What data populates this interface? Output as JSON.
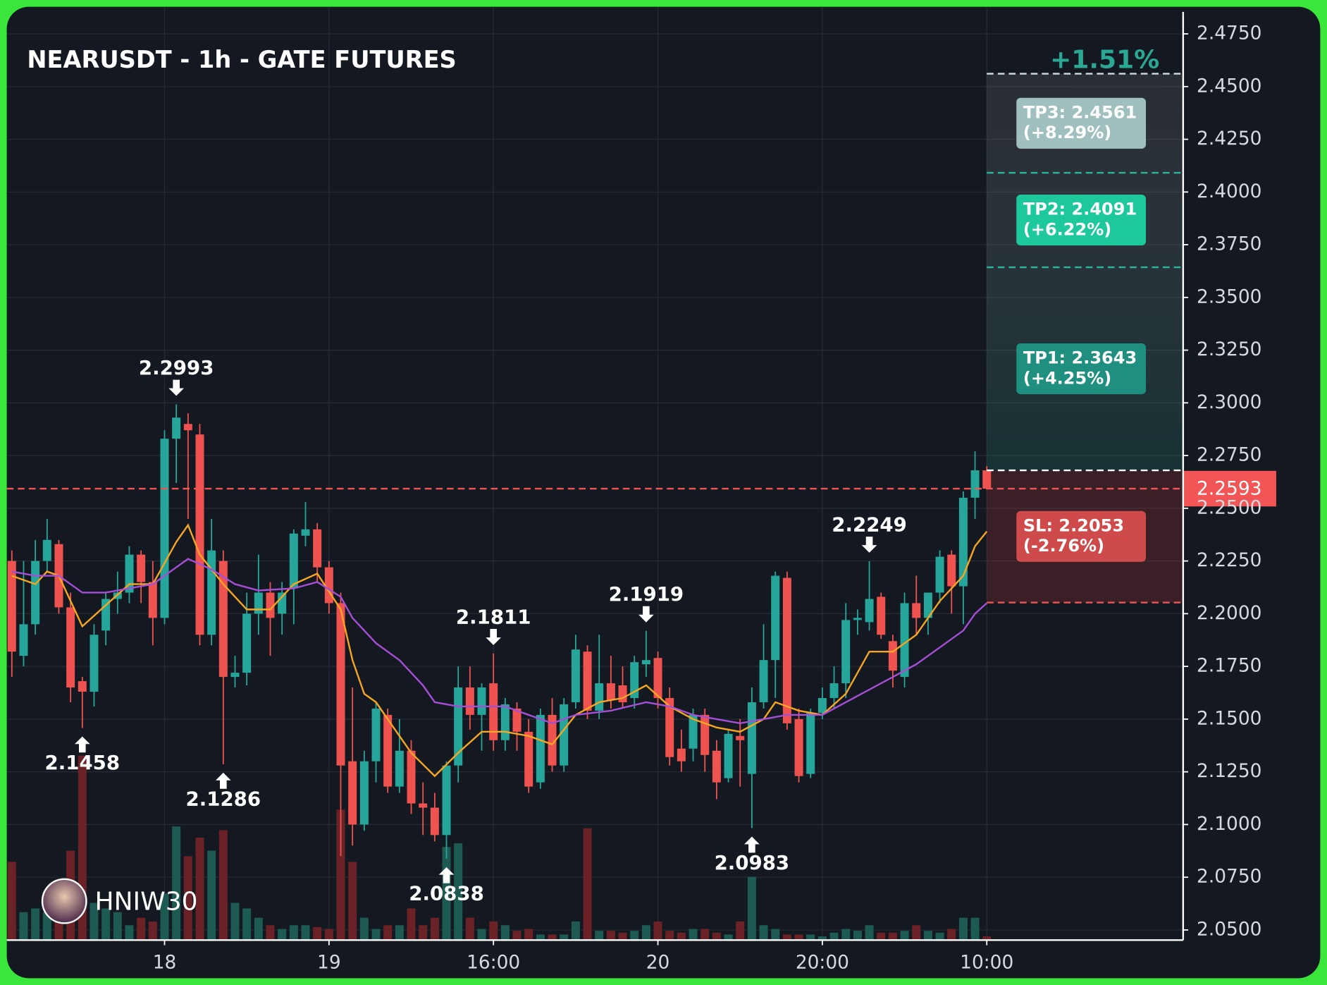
{
  "chart_data": {
    "type": "candlestick",
    "title": "NEARUSDT - 1h - GATE FUTURES",
    "change_label": "+1.51%",
    "watermark": "HNIW30",
    "categories": [
      null,
      null,
      null,
      null,
      null,
      null,
      null,
      null,
      null,
      null,
      null,
      null,
      null,
      "18",
      null,
      null,
      null,
      null,
      null,
      null,
      null,
      null,
      null,
      null,
      null,
      null,
      null,
      "19",
      null,
      null,
      null,
      null,
      null,
      null,
      null,
      null,
      null,
      null,
      null,
      null,
      null,
      "16:00",
      null,
      null,
      null,
      null,
      null,
      null,
      null,
      null,
      null,
      null,
      null,
      null,
      null,
      "20",
      null,
      null,
      null,
      null,
      null,
      null,
      null,
      null,
      null,
      null,
      null,
      null,
      null,
      "20:00",
      null,
      null,
      null,
      null,
      null,
      null,
      null,
      null,
      null,
      null,
      null,
      null,
      null,
      "10:00"
    ],
    "open": [
      2.225,
      2.18,
      2.195,
      2.225,
      2.233,
      2.203,
      2.168,
      2.163,
      2.192,
      2.207,
      2.21,
      2.228,
      2.215,
      2.198,
      2.283,
      2.29,
      2.285,
      2.19,
      2.225,
      2.17,
      2.172,
      2.2,
      2.21,
      2.2,
      2.212,
      2.237,
      2.24,
      2.222,
      2.205,
      2.13,
      2.1,
      2.13,
      2.152,
      2.118,
      2.135,
      2.11,
      2.108,
      2.095,
      2.128,
      2.165,
      2.152,
      2.167,
      2.14,
      2.155,
      2.144,
      2.12,
      2.152,
      2.128,
      2.158,
      2.182,
      2.154,
      2.167,
      2.166,
      2.16,
      2.176,
      2.179,
      2.16,
      2.136,
      2.136,
      2.152,
      2.135,
      2.122,
      2.142,
      2.124,
      2.158,
      2.178,
      2.217,
      2.15,
      2.124,
      2.153,
      2.16,
      2.167,
      2.197,
      2.196,
      2.208,
      2.187,
      2.17,
      2.205,
      2.198,
      2.21,
      2.228,
      2.213,
      2.255,
      2.268
    ],
    "high": [
      2.23,
      2.225,
      2.235,
      2.245,
      2.235,
      2.21,
      2.17,
      2.195,
      2.21,
      2.22,
      2.232,
      2.23,
      2.225,
      2.287,
      2.2993,
      2.295,
      2.29,
      2.245,
      2.23,
      2.18,
      2.21,
      2.228,
      2.215,
      2.215,
      2.24,
      2.253,
      2.243,
      2.225,
      2.21,
      2.165,
      2.135,
      2.158,
      2.155,
      2.15,
      2.14,
      2.12,
      2.115,
      2.13,
      2.175,
      2.175,
      2.167,
      2.1811,
      2.16,
      2.158,
      2.15,
      2.155,
      2.16,
      2.16,
      2.19,
      2.185,
      2.19,
      2.18,
      2.175,
      2.18,
      2.1919,
      2.182,
      2.165,
      2.145,
      2.155,
      2.155,
      2.14,
      2.145,
      2.15,
      2.165,
      2.195,
      2.22,
      2.22,
      2.155,
      2.155,
      2.165,
      2.175,
      2.205,
      2.202,
      2.2249,
      2.21,
      2.19,
      2.21,
      2.218,
      2.21,
      2.23,
      2.23,
      2.258,
      2.277,
      2.27
    ],
    "low": [
      2.17,
      2.175,
      2.19,
      2.22,
      2.2,
      2.158,
      2.1458,
      2.156,
      2.185,
      2.2,
      2.205,
      2.205,
      2.185,
      2.195,
      2.262,
      2.245,
      2.185,
      2.185,
      2.1286,
      2.165,
      2.166,
      2.19,
      2.18,
      2.19,
      2.195,
      2.232,
      2.215,
      2.2,
      2.085,
      2.09,
      2.097,
      2.12,
      2.115,
      2.115,
      2.105,
      2.095,
      2.092,
      2.0838,
      2.12,
      2.145,
      2.135,
      2.135,
      2.135,
      2.135,
      2.115,
      2.117,
      2.125,
      2.125,
      2.155,
      2.15,
      2.15,
      2.155,
      2.155,
      2.155,
      2.17,
      2.155,
      2.128,
      2.125,
      2.13,
      2.125,
      2.112,
      2.12,
      2.118,
      2.0983,
      2.155,
      2.16,
      2.145,
      2.12,
      2.122,
      2.15,
      2.155,
      2.16,
      2.19,
      2.192,
      2.188,
      2.165,
      2.165,
      2.19,
      2.19,
      2.205,
      2.2,
      2.195,
      2.245,
      2.2593
    ],
    "close": [
      2.182,
      2.195,
      2.225,
      2.235,
      2.203,
      2.165,
      2.163,
      2.19,
      2.207,
      2.21,
      2.228,
      2.215,
      2.198,
      2.283,
      2.293,
      2.287,
      2.19,
      2.23,
      2.17,
      2.172,
      2.2,
      2.21,
      2.198,
      2.21,
      2.238,
      2.24,
      2.222,
      2.205,
      2.128,
      2.1,
      2.13,
      2.155,
      2.118,
      2.135,
      2.11,
      2.108,
      2.095,
      2.128,
      2.165,
      2.152,
      2.165,
      2.14,
      2.157,
      2.144,
      2.118,
      2.152,
      2.128,
      2.157,
      2.183,
      2.154,
      2.167,
      2.159,
      2.158,
      2.177,
      2.178,
      2.16,
      2.132,
      2.13,
      2.152,
      2.133,
      2.12,
      2.143,
      2.14,
      2.158,
      2.178,
      2.218,
      2.148,
      2.123,
      2.153,
      2.16,
      2.167,
      2.197,
      2.198,
      2.207,
      2.19,
      2.173,
      2.205,
      2.198,
      2.21,
      2.227,
      2.213,
      2.255,
      2.268,
      2.2593
    ],
    "volume": [
      42,
      15,
      17,
      15,
      25,
      48,
      99,
      20,
      17,
      15,
      8,
      12,
      10,
      25,
      61,
      45,
      55,
      48,
      59,
      20,
      17,
      12,
      8,
      6,
      8,
      8,
      7,
      6,
      70,
      42,
      12,
      6,
      8,
      8,
      17,
      8,
      12,
      50,
      52,
      12,
      6,
      10,
      8,
      5,
      6,
      3,
      3,
      3,
      10,
      60,
      5,
      5,
      4,
      5,
      8,
      10,
      5,
      4,
      6,
      6,
      4,
      3,
      10,
      34,
      8,
      6,
      3,
      3,
      3,
      2,
      4,
      6,
      5,
      8,
      4,
      4,
      5,
      8,
      5,
      4,
      6,
      12,
      12,
      2
    ],
    "vlim": [
      0,
      100
    ],
    "up_color": "#26a69a",
    "down_color": "#ef5350",
    "volume_up_color": "#1d5a52",
    "volume_down_color": "#6a2226",
    "lines": [
      {
        "color": "#f5a623",
        "x": [
          0,
          2,
          3,
          4,
          6,
          8,
          10,
          12,
          14,
          15,
          16,
          18,
          20,
          22,
          24,
          26,
          28,
          29,
          30,
          31,
          32,
          33,
          34,
          36,
          38,
          40,
          42,
          44,
          46,
          48,
          50,
          52,
          54,
          56,
          58,
          60,
          62,
          64,
          65,
          67,
          69,
          71,
          73,
          75,
          77,
          79,
          81,
          82,
          83
        ],
        "values": [
          2.218,
          2.214,
          2.22,
          2.218,
          2.194,
          2.204,
          2.214,
          2.214,
          2.234,
          2.242,
          2.228,
          2.214,
          2.202,
          2.202,
          2.214,
          2.219,
          2.202,
          2.178,
          2.162,
          2.158,
          2.15,
          2.142,
          2.134,
          2.123,
          2.134,
          2.144,
          2.144,
          2.142,
          2.138,
          2.152,
          2.158,
          2.16,
          2.166,
          2.156,
          2.15,
          2.146,
          2.144,
          2.15,
          2.158,
          2.154,
          2.152,
          2.162,
          2.182,
          2.182,
          2.19,
          2.206,
          2.218,
          2.232,
          2.239
        ]
      },
      {
        "color": "#a54fd6",
        "x": [
          0,
          2,
          4,
          6,
          8,
          10,
          12,
          14,
          15,
          17,
          19,
          21,
          24,
          26,
          28,
          29,
          31,
          33,
          35,
          36,
          38,
          42,
          44,
          46,
          48,
          51,
          54,
          56,
          58,
          60,
          62,
          64,
          66,
          69,
          71,
          73,
          75,
          77,
          79,
          81,
          82,
          83
        ],
        "values": [
          2.22,
          2.218,
          2.218,
          2.21,
          2.21,
          2.212,
          2.214,
          2.222,
          2.226,
          2.221,
          2.214,
          2.211,
          2.212,
          2.215,
          2.208,
          2.198,
          2.186,
          2.178,
          2.166,
          2.158,
          2.156,
          2.156,
          2.152,
          2.148,
          2.152,
          2.154,
          2.158,
          2.156,
          2.152,
          2.15,
          2.148,
          2.15,
          2.152,
          2.152,
          2.158,
          2.164,
          2.17,
          2.176,
          2.184,
          2.192,
          2.2,
          2.205
        ]
      }
    ],
    "annotations": [
      {
        "x": 14,
        "value": 2.2993,
        "kind": "high"
      },
      {
        "x": 6,
        "value": 2.1458,
        "kind": "low"
      },
      {
        "x": 18,
        "value": 2.1286,
        "kind": "low"
      },
      {
        "x": 37,
        "value": 2.0838,
        "kind": "low"
      },
      {
        "x": 41,
        "value": 2.1811,
        "kind": "high"
      },
      {
        "x": 54,
        "value": 2.1919,
        "kind": "high"
      },
      {
        "x": 63,
        "value": 2.0983,
        "kind": "low"
      },
      {
        "x": 73,
        "value": 2.2249,
        "kind": "high"
      }
    ],
    "last_price": 2.2593,
    "entry": 2.268,
    "targets": [
      {
        "label": "TP1: 2.3643",
        "pct": "(+4.25%)",
        "value": 2.3643,
        "color": "#1f8f80",
        "line_color": "#2bb59f"
      },
      {
        "label": "TP2: 2.4091",
        "pct": "(+6.22%)",
        "value": 2.4091,
        "color": "#1dc99c",
        "line_color": "#2bb59f"
      },
      {
        "label": "TP3: 2.4561",
        "pct": "(+8.29%)",
        "value": 2.4561,
        "color": "#9fc0bf",
        "line_color": "#cfdede"
      }
    ],
    "stop": {
      "label": "SL: 2.2053",
      "pct": "(-2.76%)",
      "value": 2.2053,
      "color": "#cf4a4a",
      "line_color": "#f05555"
    },
    "ylim": [
      2.05,
      2.475
    ],
    "yticks": [
      {
        "value": 2.05,
        "label": "2.0500"
      },
      {
        "value": 2.075,
        "label": "2.0750"
      },
      {
        "value": 2.1,
        "label": "2.1000"
      },
      {
        "value": 2.125,
        "label": "2.1250"
      },
      {
        "value": 2.15,
        "label": "2.1500"
      },
      {
        "value": 2.175,
        "label": "2.1750"
      },
      {
        "value": 2.2,
        "label": "2.2000"
      },
      {
        "value": 2.225,
        "label": "2.2250"
      },
      {
        "value": 2.25,
        "label": "2.2500"
      },
      {
        "value": 2.275,
        "label": "2.2750"
      },
      {
        "value": 2.3,
        "label": "2.3000"
      },
      {
        "value": 2.325,
        "label": "2.3250"
      },
      {
        "value": 2.35,
        "label": "2.3500"
      },
      {
        "value": 2.375,
        "label": "2.3750"
      },
      {
        "value": 2.4,
        "label": "2.4000"
      },
      {
        "value": 2.425,
        "label": "2.4250"
      },
      {
        "value": 2.45,
        "label": "2.4500"
      },
      {
        "value": 2.475,
        "label": "2.4750"
      }
    ],
    "grid": true
  }
}
